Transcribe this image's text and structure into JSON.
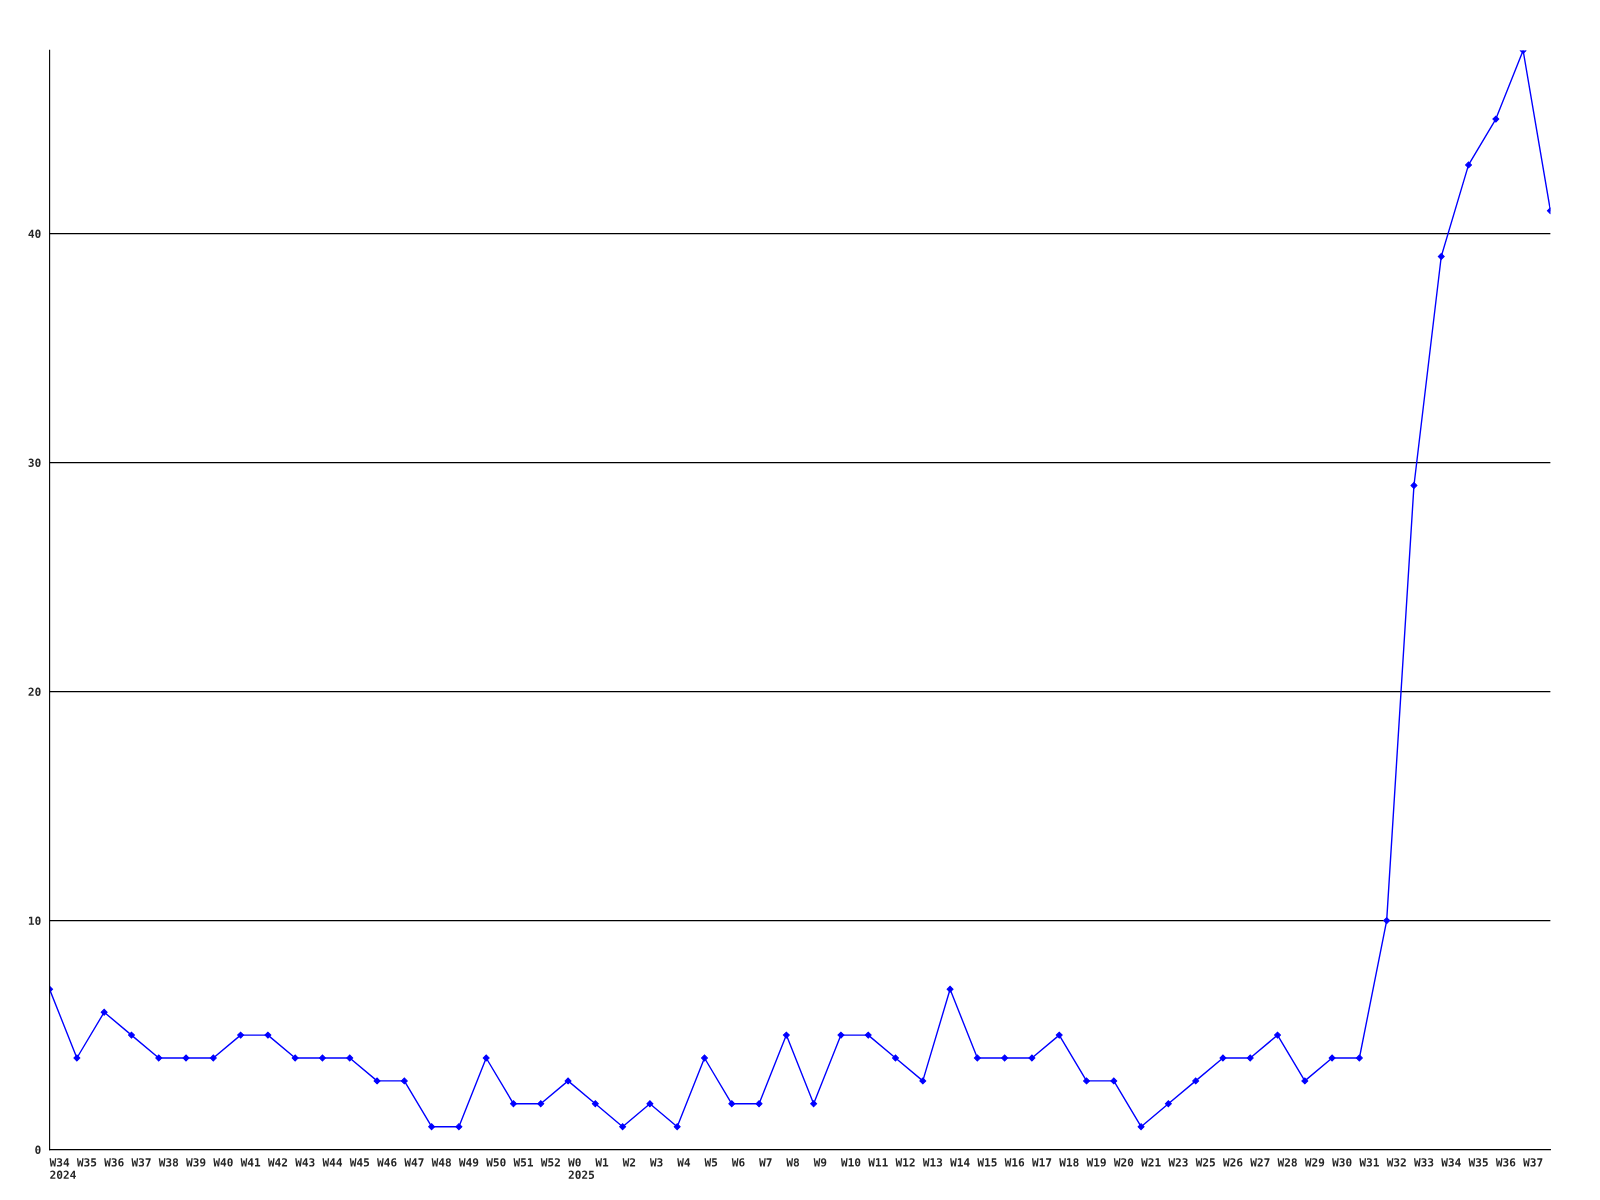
{
  "chart_data": {
    "type": "line",
    "categories": [
      "W34\n2024",
      "W35",
      "W36",
      "W37",
      "W38",
      "W39",
      "W40",
      "W41",
      "W42",
      "W43",
      "W44",
      "W45",
      "W46",
      "W47",
      "W48",
      "W49",
      "W50",
      "W51",
      "W52",
      "W0\n2025",
      "W1",
      "W2",
      "W3",
      "W4",
      "W5",
      "W6",
      "W7",
      "W8",
      "W9",
      "W10",
      "W11",
      "W12",
      "W13",
      "W14",
      "W15",
      "W16",
      "W17",
      "W18",
      "W19",
      "W20",
      "W21",
      "W23",
      "W25",
      "W26",
      "W27",
      "W28",
      "W29",
      "W30",
      "W31",
      "W32",
      "W33",
      "W34",
      "W35",
      "W36",
      "W37",
      null
    ],
    "series": [
      {
        "color": "#0000ff",
        "values": [
          7,
          4,
          6,
          5,
          4,
          4,
          4,
          5,
          5,
          4,
          4,
          4,
          3,
          3,
          1,
          1,
          4,
          2,
          2,
          3,
          2,
          1,
          2,
          1,
          4,
          2,
          2,
          5,
          2,
          5,
          5,
          4,
          3,
          7,
          4,
          4,
          4,
          5,
          3,
          3,
          1,
          2,
          3,
          4,
          4,
          5,
          3,
          4,
          4,
          10,
          29,
          39,
          43,
          45,
          48,
          41
        ]
      }
    ],
    "ylim": [
      0,
      48
    ],
    "yticks": [
      0,
      10,
      20,
      30,
      40
    ],
    "grid": "y",
    "marker": "diamond",
    "line_style": "solid",
    "legend": false
  }
}
